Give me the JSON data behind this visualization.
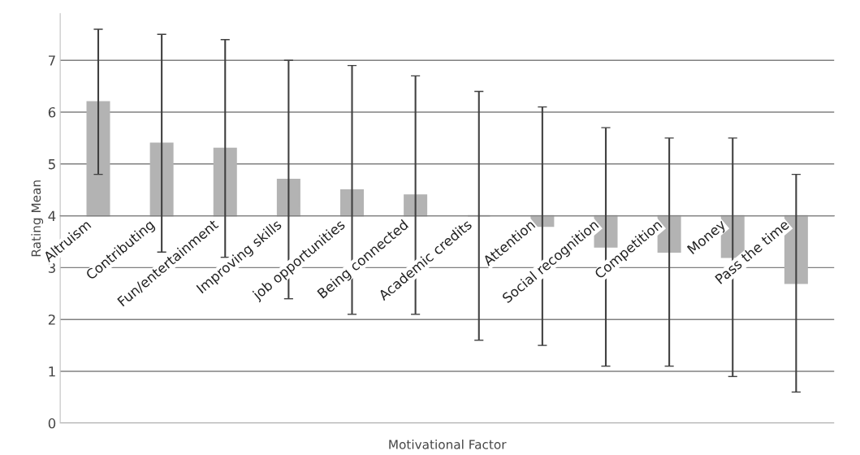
{
  "chart_data": {
    "type": "bar",
    "xlabel": "Motivational Factor",
    "ylabel": "Rating Mean",
    "categories": [
      "Altruism",
      "Contributing",
      "Fun/entertainment",
      "Improving skills",
      "job opportunities",
      "Being connected",
      "Academic credits",
      "Attention",
      "Social recognition",
      "Competition",
      "Money",
      "Pass the time"
    ],
    "base": [
      4,
      4,
      4,
      4,
      4,
      4,
      4,
      4,
      4,
      4,
      4,
      4
    ],
    "values": [
      2.2,
      1.4,
      1.3,
      0.7,
      0.5,
      0.4,
      0.0,
      -0.2,
      -0.6,
      -0.7,
      -0.8,
      -1.3
    ],
    "errors": [
      1.4,
      2.1,
      2.1,
      2.3,
      2.4,
      2.3,
      2.4,
      2.3,
      2.3,
      2.2,
      2.3,
      2.1
    ],
    "color": "#b3b3b3",
    "ylim": [
      0,
      7.9
    ],
    "yticks": [
      0,
      1,
      2,
      3,
      4,
      5,
      6,
      7
    ],
    "grid": "y"
  }
}
